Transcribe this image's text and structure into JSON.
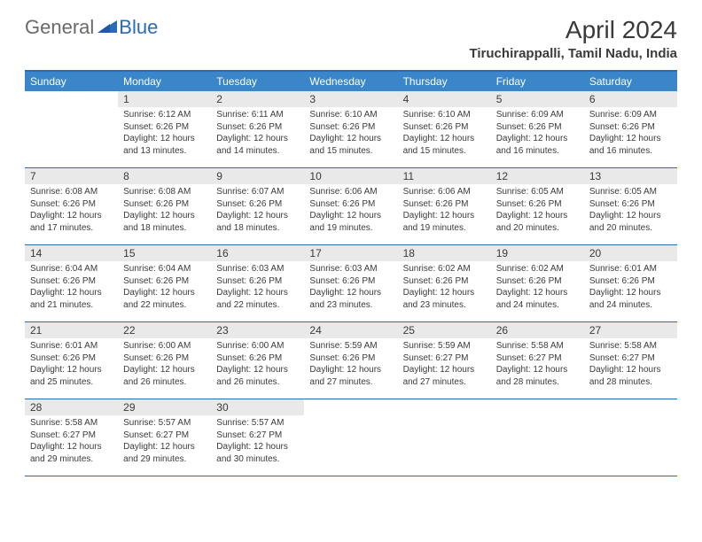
{
  "logo": {
    "general": "General",
    "blue": "Blue"
  },
  "title": "April 2024",
  "location": "Tiruchirappalli, Tamil Nadu, India",
  "headers": [
    "Sunday",
    "Monday",
    "Tuesday",
    "Wednesday",
    "Thursday",
    "Friday",
    "Saturday"
  ],
  "colors": {
    "accent": "#2a6bb5",
    "header_bg": "#3a86c8",
    "daynum_bg": "#e9e9e9",
    "text": "#3a3a3a",
    "logo_gray": "#6a6a6a"
  },
  "weeks": [
    [
      {
        "n": "",
        "sr": "",
        "ss": "",
        "dl": ""
      },
      {
        "n": "1",
        "sr": "Sunrise: 6:12 AM",
        "ss": "Sunset: 6:26 PM",
        "dl": "Daylight: 12 hours and 13 minutes."
      },
      {
        "n": "2",
        "sr": "Sunrise: 6:11 AM",
        "ss": "Sunset: 6:26 PM",
        "dl": "Daylight: 12 hours and 14 minutes."
      },
      {
        "n": "3",
        "sr": "Sunrise: 6:10 AM",
        "ss": "Sunset: 6:26 PM",
        "dl": "Daylight: 12 hours and 15 minutes."
      },
      {
        "n": "4",
        "sr": "Sunrise: 6:10 AM",
        "ss": "Sunset: 6:26 PM",
        "dl": "Daylight: 12 hours and 15 minutes."
      },
      {
        "n": "5",
        "sr": "Sunrise: 6:09 AM",
        "ss": "Sunset: 6:26 PM",
        "dl": "Daylight: 12 hours and 16 minutes."
      },
      {
        "n": "6",
        "sr": "Sunrise: 6:09 AM",
        "ss": "Sunset: 6:26 PM",
        "dl": "Daylight: 12 hours and 16 minutes."
      }
    ],
    [
      {
        "n": "7",
        "sr": "Sunrise: 6:08 AM",
        "ss": "Sunset: 6:26 PM",
        "dl": "Daylight: 12 hours and 17 minutes."
      },
      {
        "n": "8",
        "sr": "Sunrise: 6:08 AM",
        "ss": "Sunset: 6:26 PM",
        "dl": "Daylight: 12 hours and 18 minutes."
      },
      {
        "n": "9",
        "sr": "Sunrise: 6:07 AM",
        "ss": "Sunset: 6:26 PM",
        "dl": "Daylight: 12 hours and 18 minutes."
      },
      {
        "n": "10",
        "sr": "Sunrise: 6:06 AM",
        "ss": "Sunset: 6:26 PM",
        "dl": "Daylight: 12 hours and 19 minutes."
      },
      {
        "n": "11",
        "sr": "Sunrise: 6:06 AM",
        "ss": "Sunset: 6:26 PM",
        "dl": "Daylight: 12 hours and 19 minutes."
      },
      {
        "n": "12",
        "sr": "Sunrise: 6:05 AM",
        "ss": "Sunset: 6:26 PM",
        "dl": "Daylight: 12 hours and 20 minutes."
      },
      {
        "n": "13",
        "sr": "Sunrise: 6:05 AM",
        "ss": "Sunset: 6:26 PM",
        "dl": "Daylight: 12 hours and 20 minutes."
      }
    ],
    [
      {
        "n": "14",
        "sr": "Sunrise: 6:04 AM",
        "ss": "Sunset: 6:26 PM",
        "dl": "Daylight: 12 hours and 21 minutes."
      },
      {
        "n": "15",
        "sr": "Sunrise: 6:04 AM",
        "ss": "Sunset: 6:26 PM",
        "dl": "Daylight: 12 hours and 22 minutes."
      },
      {
        "n": "16",
        "sr": "Sunrise: 6:03 AM",
        "ss": "Sunset: 6:26 PM",
        "dl": "Daylight: 12 hours and 22 minutes."
      },
      {
        "n": "17",
        "sr": "Sunrise: 6:03 AM",
        "ss": "Sunset: 6:26 PM",
        "dl": "Daylight: 12 hours and 23 minutes."
      },
      {
        "n": "18",
        "sr": "Sunrise: 6:02 AM",
        "ss": "Sunset: 6:26 PM",
        "dl": "Daylight: 12 hours and 23 minutes."
      },
      {
        "n": "19",
        "sr": "Sunrise: 6:02 AM",
        "ss": "Sunset: 6:26 PM",
        "dl": "Daylight: 12 hours and 24 minutes."
      },
      {
        "n": "20",
        "sr": "Sunrise: 6:01 AM",
        "ss": "Sunset: 6:26 PM",
        "dl": "Daylight: 12 hours and 24 minutes."
      }
    ],
    [
      {
        "n": "21",
        "sr": "Sunrise: 6:01 AM",
        "ss": "Sunset: 6:26 PM",
        "dl": "Daylight: 12 hours and 25 minutes."
      },
      {
        "n": "22",
        "sr": "Sunrise: 6:00 AM",
        "ss": "Sunset: 6:26 PM",
        "dl": "Daylight: 12 hours and 26 minutes."
      },
      {
        "n": "23",
        "sr": "Sunrise: 6:00 AM",
        "ss": "Sunset: 6:26 PM",
        "dl": "Daylight: 12 hours and 26 minutes."
      },
      {
        "n": "24",
        "sr": "Sunrise: 5:59 AM",
        "ss": "Sunset: 6:26 PM",
        "dl": "Daylight: 12 hours and 27 minutes."
      },
      {
        "n": "25",
        "sr": "Sunrise: 5:59 AM",
        "ss": "Sunset: 6:27 PM",
        "dl": "Daylight: 12 hours and 27 minutes."
      },
      {
        "n": "26",
        "sr": "Sunrise: 5:58 AM",
        "ss": "Sunset: 6:27 PM",
        "dl": "Daylight: 12 hours and 28 minutes."
      },
      {
        "n": "27",
        "sr": "Sunrise: 5:58 AM",
        "ss": "Sunset: 6:27 PM",
        "dl": "Daylight: 12 hours and 28 minutes."
      }
    ],
    [
      {
        "n": "28",
        "sr": "Sunrise: 5:58 AM",
        "ss": "Sunset: 6:27 PM",
        "dl": "Daylight: 12 hours and 29 minutes."
      },
      {
        "n": "29",
        "sr": "Sunrise: 5:57 AM",
        "ss": "Sunset: 6:27 PM",
        "dl": "Daylight: 12 hours and 29 minutes."
      },
      {
        "n": "30",
        "sr": "Sunrise: 5:57 AM",
        "ss": "Sunset: 6:27 PM",
        "dl": "Daylight: 12 hours and 30 minutes."
      },
      {
        "n": "",
        "sr": "",
        "ss": "",
        "dl": ""
      },
      {
        "n": "",
        "sr": "",
        "ss": "",
        "dl": ""
      },
      {
        "n": "",
        "sr": "",
        "ss": "",
        "dl": ""
      },
      {
        "n": "",
        "sr": "",
        "ss": "",
        "dl": ""
      }
    ]
  ]
}
